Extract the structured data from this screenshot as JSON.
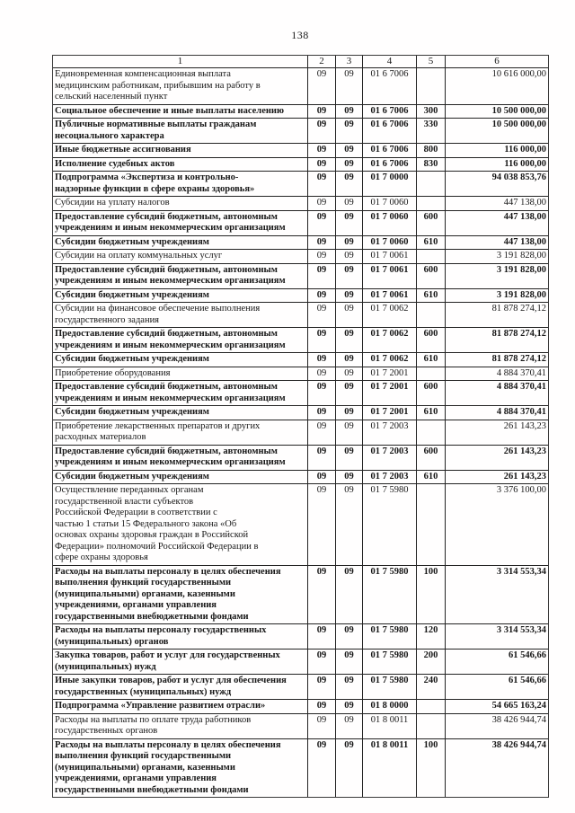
{
  "page": {
    "number": "138"
  },
  "table": {
    "headers": [
      "1",
      "2",
      "3",
      "4",
      "5",
      "6"
    ],
    "rows": [
      {
        "name": "Единовременная компенсационная выплата\nмедицинским работникам, прибывшим на работу в\nсельский населенный пункт",
        "rz": "09",
        "pr": "09",
        "csr": "01 6 7006",
        "vr": "",
        "sum": "10 616 000,00",
        "bold": false
      },
      {
        "name": "Социальное обеспечение и иные выплаты населению",
        "rz": "09",
        "pr": "09",
        "csr": "01 6 7006",
        "vr": "300",
        "sum": "10 500 000,00",
        "bold": true
      },
      {
        "name": "Публичные нормативные выплаты гражданам\nнесоциального характера",
        "rz": "09",
        "pr": "09",
        "csr": "01 6 7006",
        "vr": "330",
        "sum": "10 500 000,00",
        "bold": true
      },
      {
        "name": "Иные бюджетные ассигнования",
        "rz": "09",
        "pr": "09",
        "csr": "01 6 7006",
        "vr": "800",
        "sum": "116 000,00",
        "bold": true
      },
      {
        "name": "Исполнение судебных актов",
        "rz": "09",
        "pr": "09",
        "csr": "01 6 7006",
        "vr": "830",
        "sum": "116 000,00",
        "bold": true
      },
      {
        "name": "Подпрограмма «Экспертиза и контрольно-\nнадзорные функции в сфере охраны здоровья»",
        "rz": "09",
        "pr": "09",
        "csr": "01 7 0000",
        "vr": "",
        "sum": "94 038 853,76",
        "bold": true
      },
      {
        "name": "Субсидии на уплату налогов",
        "rz": "09",
        "pr": "09",
        "csr": "01 7 0060",
        "vr": "",
        "sum": "447 138,00",
        "bold": false
      },
      {
        "name": "Предоставление субсидий бюджетным, автономным\nучреждениям и иным некоммерческим организациям",
        "rz": "09",
        "pr": "09",
        "csr": "01 7 0060",
        "vr": "600",
        "sum": "447 138,00",
        "bold": true
      },
      {
        "name": "Субсидии бюджетным учреждениям",
        "rz": "09",
        "pr": "09",
        "csr": "01 7 0060",
        "vr": "610",
        "sum": "447 138,00",
        "bold": true
      },
      {
        "name": "Субсидии на оплату коммунальных услуг",
        "rz": "09",
        "pr": "09",
        "csr": "01 7 0061",
        "vr": "",
        "sum": "3 191 828,00",
        "bold": false
      },
      {
        "name": "Предоставление субсидий бюджетным, автономным\nучреждениям и иным некоммерческим организациям",
        "rz": "09",
        "pr": "09",
        "csr": "01 7 0061",
        "vr": "600",
        "sum": "3 191 828,00",
        "bold": true
      },
      {
        "name": "Субсидии бюджетным учреждениям",
        "rz": "09",
        "pr": "09",
        "csr": "01 7 0061",
        "vr": "610",
        "sum": "3 191 828,00",
        "bold": true
      },
      {
        "name": "Субсидии на финансовое обеспечение выполнения\nгосударственного задания",
        "rz": "09",
        "pr": "09",
        "csr": "01 7 0062",
        "vr": "",
        "sum": "81 878 274,12",
        "bold": false
      },
      {
        "name": "Предоставление субсидий бюджетным, автономным\nучреждениям и иным некоммерческим организациям",
        "rz": "09",
        "pr": "09",
        "csr": "01 7 0062",
        "vr": "600",
        "sum": "81 878 274,12",
        "bold": true
      },
      {
        "name": "Субсидии бюджетным учреждениям",
        "rz": "09",
        "pr": "09",
        "csr": "01 7 0062",
        "vr": "610",
        "sum": "81 878 274,12",
        "bold": true
      },
      {
        "name": "Приобретение оборудования",
        "rz": "09",
        "pr": "09",
        "csr": "01 7 2001",
        "vr": "",
        "sum": "4 884 370,41",
        "bold": false
      },
      {
        "name": "Предоставление субсидий бюджетным, автономным\nучреждениям и иным некоммерческим организациям",
        "rz": "09",
        "pr": "09",
        "csr": "01 7 2001",
        "vr": "600",
        "sum": "4 884 370,41",
        "bold": true
      },
      {
        "name": "Субсидии бюджетным учреждениям",
        "rz": "09",
        "pr": "09",
        "csr": "01 7 2001",
        "vr": "610",
        "sum": "4 884 370,41",
        "bold": true
      },
      {
        "name": "Приобретение лекарственных препаратов и других\nрасходных материалов",
        "rz": "09",
        "pr": "09",
        "csr": "01 7 2003",
        "vr": "",
        "sum": "261 143,23",
        "bold": false
      },
      {
        "name": "Предоставление субсидий бюджетным, автономным\nучреждениям и иным некоммерческим организациям",
        "rz": "09",
        "pr": "09",
        "csr": "01 7 2003",
        "vr": "600",
        "sum": "261 143,23",
        "bold": true
      },
      {
        "name": "Субсидии бюджетным учреждениям",
        "rz": "09",
        "pr": "09",
        "csr": "01 7 2003",
        "vr": "610",
        "sum": "261 143,23",
        "bold": true
      },
      {
        "name": "Осуществление переданных органам\nгосударственной власти субъектов\nРоссийской Федерации в соответствии с\nчастью 1 статьи 15 Федерального закона «Об\nосновах охраны здоровья граждан в Российской\nФедерации» полномочий Российской Федерации в\nсфере охраны здоровья",
        "rz": "09",
        "pr": "09",
        "csr": "01 7 5980",
        "vr": "",
        "sum": "3 376 100,00",
        "bold": false
      },
      {
        "name": "Расходы на выплаты персоналу в целях обеспечения\nвыполнения функций государственными\n(муниципальными) органами, казенными\nучреждениями, органами управления\nгосударственными внебюджетными фондами",
        "rz": "09",
        "pr": "09",
        "csr": "01 7 5980",
        "vr": "100",
        "sum": "3 314 553,34",
        "bold": true
      },
      {
        "name": "Расходы на выплаты персоналу государственных\n(муниципальных) органов",
        "rz": "09",
        "pr": "09",
        "csr": "01 7 5980",
        "vr": "120",
        "sum": "3 314 553,34",
        "bold": true
      },
      {
        "name": "Закупка товаров, работ и услуг для государственных\n(муниципальных) нужд",
        "rz": "09",
        "pr": "09",
        "csr": "01 7 5980",
        "vr": "200",
        "sum": "61 546,66",
        "bold": true
      },
      {
        "name": "Иные закупки товаров, работ и услуг для обеспечения\nгосударственных (муниципальных) нужд",
        "rz": "09",
        "pr": "09",
        "csr": "01 7 5980",
        "vr": "240",
        "sum": "61 546,66",
        "bold": true
      },
      {
        "name": "Подпрограмма «Управление развитием отрасли»",
        "rz": "09",
        "pr": "09",
        "csr": "01 8 0000",
        "vr": "",
        "sum": "54 665 163,24",
        "bold": true
      },
      {
        "name": "Расходы на выплаты по оплате труда работников\nгосударственных органов",
        "rz": "09",
        "pr": "09",
        "csr": "01 8 0011",
        "vr": "",
        "sum": "38 426 944,74",
        "bold": false
      },
      {
        "name": "Расходы на выплаты персоналу в целях обеспечения\nвыполнения функций государственными\n(муниципальными) органами, казенными\nучреждениями, органами управления\nгосударственными внебюджетными фондами",
        "rz": "09",
        "pr": "09",
        "csr": "01 8 0011",
        "vr": "100",
        "sum": "38 426 944,74",
        "bold": true
      }
    ]
  }
}
